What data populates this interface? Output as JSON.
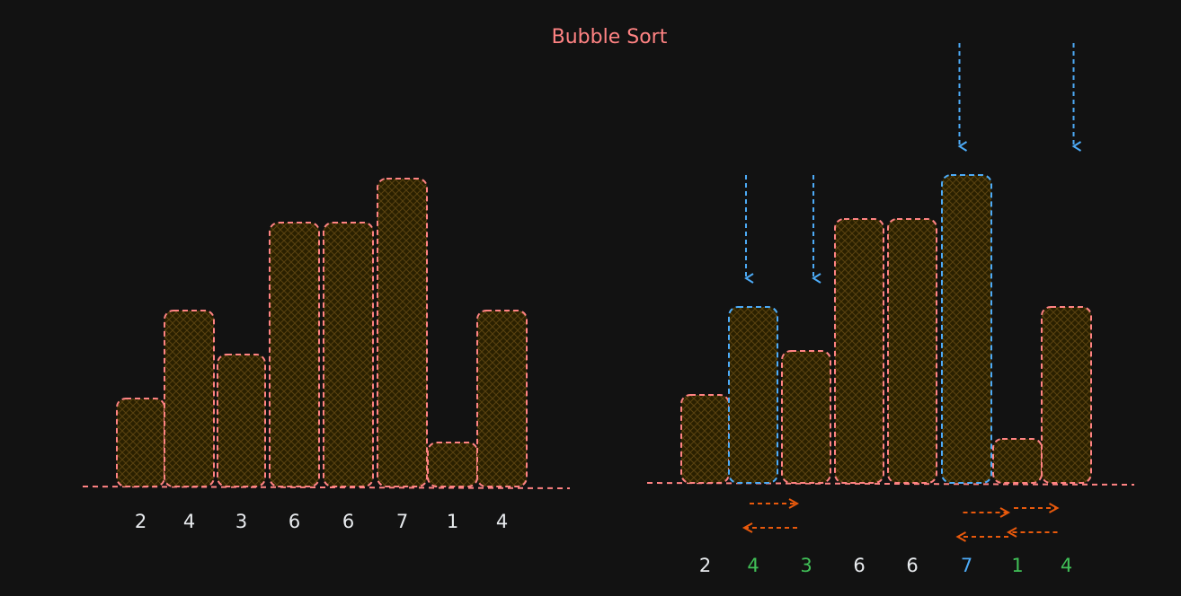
{
  "title": "Bubble Sort",
  "colors": {
    "background": "#121212",
    "bar": "#ff8383",
    "compare": "#4dabf7",
    "arrow": "#e8590c",
    "label_default": "#e9ecef",
    "label_changed": "#40c057",
    "label_compare": "#4dabf7",
    "hatch": "#3d2e00"
  },
  "before": {
    "values": [
      2,
      4,
      3,
      6,
      6,
      7,
      1,
      4
    ],
    "labels": [
      "2",
      "4",
      "3",
      "6",
      "6",
      "7",
      "1",
      "4"
    ]
  },
  "after": {
    "values": [
      2,
      4,
      3,
      6,
      6,
      7,
      1,
      4
    ],
    "labels": [
      "2",
      "4",
      "3",
      "6",
      "6",
      "7",
      "1",
      "4"
    ],
    "highlighted_bars": [
      1,
      5
    ],
    "label_states": [
      "default",
      "changed",
      "changed",
      "default",
      "default",
      "compare",
      "changed",
      "changed"
    ],
    "down_arrow_groups": [
      {
        "bars": [
          1,
          2
        ]
      },
      {
        "bars": [
          5,
          7
        ]
      }
    ],
    "swap_arrow_groups": [
      {
        "bars": [
          1,
          2
        ]
      },
      {
        "bars": [
          5,
          6
        ]
      },
      {
        "bars": [
          6,
          7
        ]
      }
    ]
  }
}
